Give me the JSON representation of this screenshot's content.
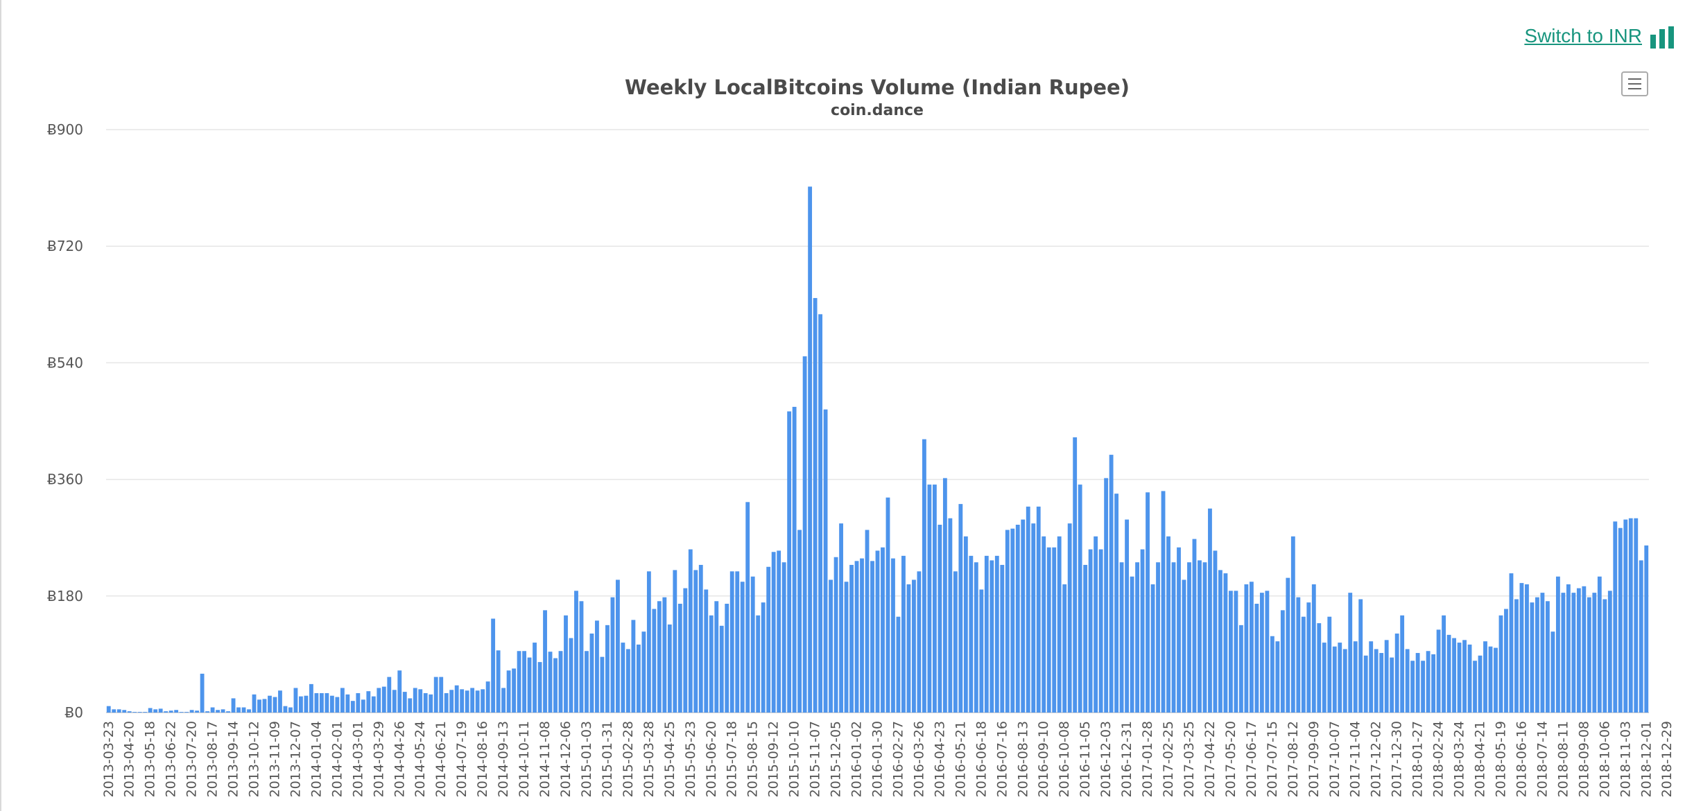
{
  "header": {
    "switch_label": "Switch to INR",
    "switch_icon": "bar-chart-icon",
    "menu_icon": "hamburger-menu-icon"
  },
  "colors": {
    "bar": "#4d94ec",
    "accent": "#18957e",
    "grid": "#e6e6e6"
  },
  "chart_data": {
    "type": "bar",
    "title": "Weekly LocalBitcoins Volume (Indian Rupee)",
    "subtitle": "coin.dance",
    "xlabel": "",
    "ylabel": "",
    "ylim": [
      0,
      900
    ],
    "y_ticks": [
      "Ƀ0",
      "Ƀ180",
      "Ƀ360",
      "Ƀ540",
      "Ƀ720",
      "Ƀ900"
    ],
    "y_tick_values": [
      0,
      180,
      360,
      540,
      720,
      900
    ],
    "grid": true,
    "legend": "none",
    "x_tick_labels": [
      "2013-03-23",
      "2013-04-20",
      "2013-05-18",
      "2013-06-22",
      "2013-07-20",
      "2013-08-17",
      "2013-09-14",
      "2013-10-12",
      "2013-11-09",
      "2013-12-07",
      "2014-01-04",
      "2014-02-01",
      "2014-03-01",
      "2014-03-29",
      "2014-04-26",
      "2014-05-24",
      "2014-06-21",
      "2014-07-19",
      "2014-08-16",
      "2014-09-13",
      "2014-10-11",
      "2014-11-08",
      "2014-12-06",
      "2015-01-03",
      "2015-01-31",
      "2015-02-28",
      "2015-03-28",
      "2015-04-25",
      "2015-05-23",
      "2015-06-20",
      "2015-07-18",
      "2015-08-15",
      "2015-09-12",
      "2015-10-10",
      "2015-11-07",
      "2015-12-05",
      "2016-01-02",
      "2016-01-30",
      "2016-02-27",
      "2016-03-26",
      "2016-04-23",
      "2016-05-21",
      "2016-06-18",
      "2016-07-16",
      "2016-08-13",
      "2016-09-10",
      "2016-10-08",
      "2016-11-05",
      "2016-12-03",
      "2016-12-31",
      "2017-01-28",
      "2017-02-25",
      "2017-03-25",
      "2017-04-22",
      "2017-05-20",
      "2017-06-17",
      "2017-07-15",
      "2017-08-12",
      "2017-09-09",
      "2017-10-07",
      "2017-11-04",
      "2017-12-02",
      "2017-12-30",
      "2018-01-27",
      "2018-02-24",
      "2018-03-24",
      "2018-04-21",
      "2018-05-19",
      "2018-06-16",
      "2018-07-14",
      "2018-08-11",
      "2018-09-08",
      "2018-10-06",
      "2018-11-03",
      "2018-12-01",
      "2018-12-29"
    ],
    "values": [
      10,
      5,
      5,
      4,
      2,
      1,
      1,
      1,
      7,
      5,
      6,
      2,
      3,
      4,
      1,
      1,
      4,
      3,
      60,
      2,
      8,
      4,
      5,
      2,
      22,
      8,
      8,
      5,
      28,
      20,
      21,
      26,
      24,
      34,
      10,
      8,
      38,
      25,
      26,
      44,
      30,
      30,
      30,
      26,
      24,
      38,
      28,
      18,
      30,
      20,
      33,
      25,
      38,
      40,
      55,
      35,
      65,
      32,
      22,
      38,
      36,
      30,
      28,
      55,
      55,
      30,
      35,
      42,
      36,
      34,
      38,
      34,
      36,
      48,
      145,
      96,
      38,
      65,
      68,
      95,
      95,
      85,
      108,
      78,
      158,
      94,
      84,
      95,
      150,
      115,
      188,
      172,
      95,
      122,
      142,
      86,
      135,
      178,
      205,
      108,
      98,
      143,
      105,
      125,
      218,
      160,
      172,
      178,
      136,
      220,
      168,
      192,
      252,
      220,
      228,
      190,
      150,
      172,
      134,
      168,
      218,
      218,
      202,
      325,
      210,
      150,
      170,
      225,
      248,
      250,
      232,
      465,
      472,
      282,
      550,
      812,
      640,
      615,
      468,
      205,
      240,
      292,
      202,
      228,
      234,
      238,
      282,
      234,
      250,
      255,
      332,
      238,
      148,
      242,
      198,
      205,
      218,
      422,
      352,
      352,
      290,
      362,
      300,
      218,
      322,
      272,
      242,
      232,
      190,
      242,
      235,
      242,
      228,
      282,
      284,
      290,
      298,
      318,
      292,
      318,
      272,
      255,
      255,
      272,
      198,
      292,
      425,
      352,
      228,
      252,
      272,
      252,
      362,
      398,
      338,
      232,
      298,
      210,
      232,
      252,
      340,
      198,
      232,
      342,
      272,
      232,
      255,
      205,
      232,
      268,
      235,
      232,
      315,
      250,
      220,
      215,
      188,
      188,
      135,
      198,
      202,
      168,
      185,
      188,
      118,
      110,
      158,
      208,
      272,
      178,
      148,
      170,
      198,
      138,
      108,
      148,
      102,
      108,
      98,
      185,
      110,
      175,
      88,
      110,
      98,
      92,
      112,
      85,
      122,
      150,
      98,
      80,
      92,
      80,
      95,
      90,
      128,
      150,
      120,
      115,
      108,
      112,
      105,
      80,
      88,
      110,
      102,
      100,
      150,
      160,
      215,
      175,
      200,
      198,
      170,
      178,
      185,
      172,
      125,
      210,
      185,
      198,
      185,
      192,
      195,
      178,
      185,
      210,
      175,
      188,
      295,
      285,
      298,
      300,
      300,
      235,
      258
    ]
  }
}
